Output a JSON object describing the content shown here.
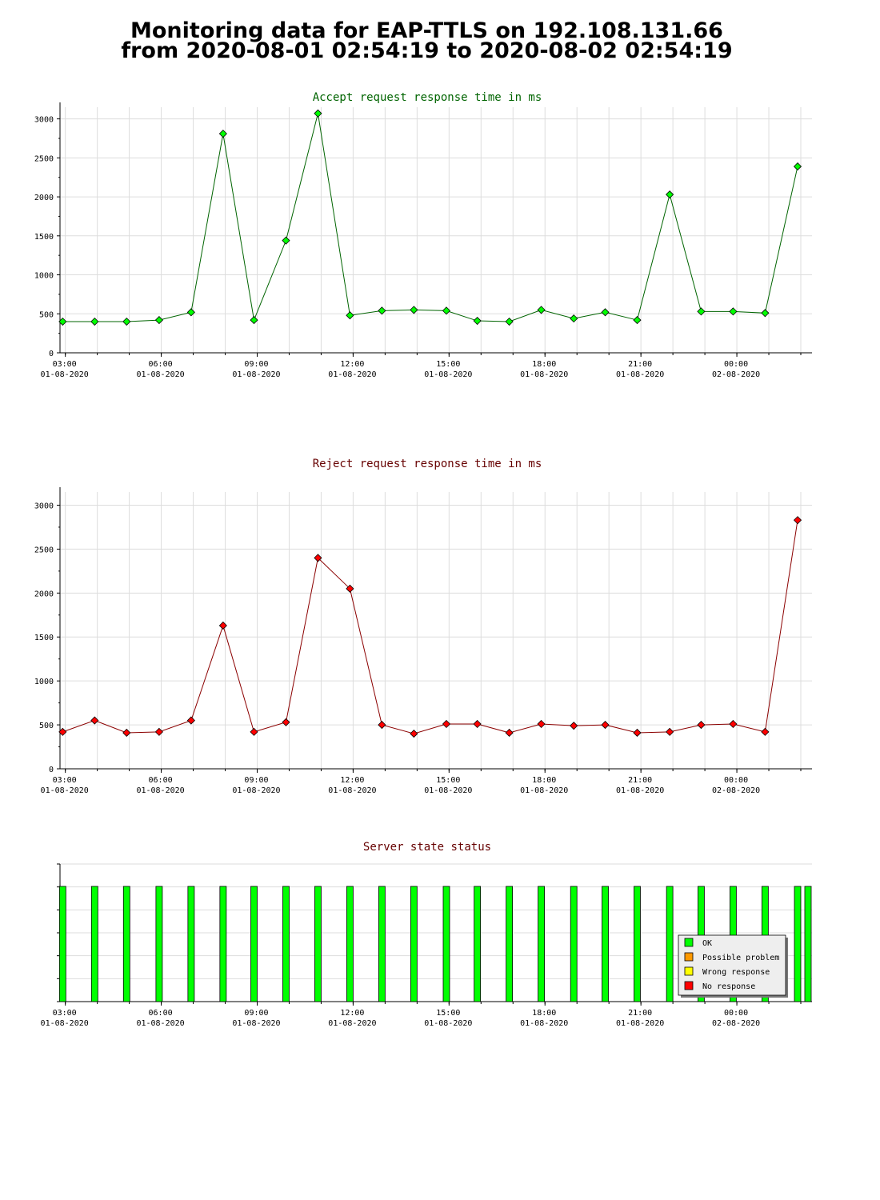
{
  "page": {
    "title_line1": "Monitoring data for EAP-TTLS on 192.108.131.66",
    "title_line2": "from 2020-08-01 02:54:19 to 2020-08-02 02:54:19"
  },
  "colors": {
    "accept_line": "#006400",
    "accept_point": "#00ff00",
    "reject_line": "#8b0000",
    "reject_point": "#ff0000",
    "ok": "#00ff00",
    "possible_problem": "#ff9900",
    "wrong_response": "#ffff00",
    "no_response": "#ff0000",
    "grid": "#dddddd"
  },
  "legend": {
    "items": [
      {
        "label": "OK",
        "color": "#00ff00"
      },
      {
        "label": "Possible problem",
        "color": "#ff9900"
      },
      {
        "label": "Wrong response",
        "color": "#ffff00"
      },
      {
        "label": "No response",
        "color": "#ff0000"
      }
    ]
  },
  "chart_data": [
    {
      "type": "line",
      "title": "Accept request response time in ms",
      "title_color": "#006400",
      "xlabel": "",
      "ylabel": "",
      "x_tick_labels": [
        {
          "time": "03:00",
          "date": "01-08-2020"
        },
        {
          "time": "06:00",
          "date": "01-08-2020"
        },
        {
          "time": "09:00",
          "date": "01-08-2020"
        },
        {
          "time": "12:00",
          "date": "01-08-2020"
        },
        {
          "time": "15:00",
          "date": "01-08-2020"
        },
        {
          "time": "18:00",
          "date": "01-08-2020"
        },
        {
          "time": "21:00",
          "date": "01-08-2020"
        },
        {
          "time": "00:00",
          "date": "02-08-2020"
        }
      ],
      "xlim": [
        "2020-08-01 02:50",
        "2020-08-02 02:21"
      ],
      "ylim": [
        0,
        3150
      ],
      "yticks": [
        0,
        500,
        1000,
        1500,
        2000,
        2500,
        3000
      ],
      "grid": true,
      "series": [
        {
          "x": [
            "2020-08-01 02:55",
            "2020-08-01 03:55",
            "2020-08-01 04:55",
            "2020-08-01 05:56",
            "2020-08-01 06:56",
            "2020-08-01 07:56",
            "2020-08-01 08:54",
            "2020-08-01 09:54",
            "2020-08-01 10:54",
            "2020-08-01 11:54",
            "2020-08-01 12:54",
            "2020-08-01 13:54",
            "2020-08-01 14:55",
            "2020-08-01 15:53",
            "2020-08-01 16:53",
            "2020-08-01 17:53",
            "2020-08-01 18:54",
            "2020-08-01 19:53",
            "2020-08-01 20:53",
            "2020-08-01 21:54",
            "2020-08-01 22:53",
            "2020-08-01 23:53",
            "2020-08-02 00:53",
            "2020-08-02 01:54"
          ],
          "values": [
            400,
            400,
            400,
            420,
            520,
            2810,
            420,
            1440,
            3070,
            480,
            540,
            550,
            540,
            410,
            400,
            550,
            440,
            520,
            420,
            2030,
            530,
            530,
            510,
            2390
          ]
        }
      ]
    },
    {
      "type": "line",
      "title": "Reject request response time in ms",
      "title_color": "#660000",
      "xlabel": "",
      "ylabel": "",
      "x_tick_labels": [
        {
          "time": "03:00",
          "date": "01-08-2020"
        },
        {
          "time": "06:00",
          "date": "01-08-2020"
        },
        {
          "time": "09:00",
          "date": "01-08-2020"
        },
        {
          "time": "12:00",
          "date": "01-08-2020"
        },
        {
          "time": "15:00",
          "date": "01-08-2020"
        },
        {
          "time": "18:00",
          "date": "01-08-2020"
        },
        {
          "time": "21:00",
          "date": "01-08-2020"
        },
        {
          "time": "00:00",
          "date": "02-08-2020"
        }
      ],
      "xlim": [
        "2020-08-01 02:50",
        "2020-08-02 02:21"
      ],
      "ylim": [
        0,
        3150
      ],
      "yticks": [
        0,
        500,
        1000,
        1500,
        2000,
        2500,
        3000
      ],
      "grid": true,
      "series": [
        {
          "x": [
            "2020-08-01 02:55",
            "2020-08-01 03:55",
            "2020-08-01 04:55",
            "2020-08-01 05:56",
            "2020-08-01 06:56",
            "2020-08-01 07:56",
            "2020-08-01 08:54",
            "2020-08-01 09:54",
            "2020-08-01 10:54",
            "2020-08-01 11:54",
            "2020-08-01 12:54",
            "2020-08-01 13:54",
            "2020-08-01 14:55",
            "2020-08-01 15:53",
            "2020-08-01 16:53",
            "2020-08-01 17:53",
            "2020-08-01 18:54",
            "2020-08-01 19:53",
            "2020-08-01 20:53",
            "2020-08-01 21:54",
            "2020-08-01 22:53",
            "2020-08-01 23:53",
            "2020-08-02 00:53",
            "2020-08-02 01:54"
          ],
          "values": [
            420,
            550,
            410,
            420,
            550,
            1630,
            420,
            530,
            2400,
            2050,
            500,
            400,
            510,
            510,
            410,
            510,
            490,
            500,
            410,
            420,
            500,
            510,
            420,
            2830
          ]
        }
      ]
    },
    {
      "type": "bar",
      "title": "Server state status",
      "title_color": "#660000",
      "x_tick_labels": [
        {
          "time": "03:00",
          "date": "01-08-2020"
        },
        {
          "time": "06:00",
          "date": "01-08-2020"
        },
        {
          "time": "09:00",
          "date": "01-08-2020"
        },
        {
          "time": "12:00",
          "date": "01-08-2020"
        },
        {
          "time": "15:00",
          "date": "01-08-2020"
        },
        {
          "time": "18:00",
          "date": "01-08-2020"
        },
        {
          "time": "21:00",
          "date": "01-08-2020"
        },
        {
          "time": "00:00",
          "date": "02-08-2020"
        }
      ],
      "xlim": [
        "2020-08-01 02:50",
        "2020-08-02 02:21"
      ],
      "legend_position": "bottom-right",
      "x": [
        "2020-08-01 02:55",
        "2020-08-01 03:55",
        "2020-08-01 04:55",
        "2020-08-01 05:56",
        "2020-08-01 06:56",
        "2020-08-01 07:56",
        "2020-08-01 08:54",
        "2020-08-01 09:54",
        "2020-08-01 10:54",
        "2020-08-01 11:54",
        "2020-08-01 12:54",
        "2020-08-01 13:54",
        "2020-08-01 14:55",
        "2020-08-01 15:53",
        "2020-08-01 16:53",
        "2020-08-01 17:53",
        "2020-08-01 18:54",
        "2020-08-01 19:53",
        "2020-08-01 20:53",
        "2020-08-01 21:54",
        "2020-08-01 22:53",
        "2020-08-01 23:53",
        "2020-08-02 00:53",
        "2020-08-02 01:54",
        "2020-08-02 02:00"
      ],
      "status": [
        "OK",
        "OK",
        "OK",
        "OK",
        "OK",
        "OK",
        "OK",
        "OK",
        "OK",
        "OK",
        "OK",
        "OK",
        "OK",
        "OK",
        "OK",
        "OK",
        "OK",
        "OK",
        "OK",
        "OK",
        "OK",
        "OK",
        "OK",
        "OK",
        "OK"
      ]
    }
  ]
}
